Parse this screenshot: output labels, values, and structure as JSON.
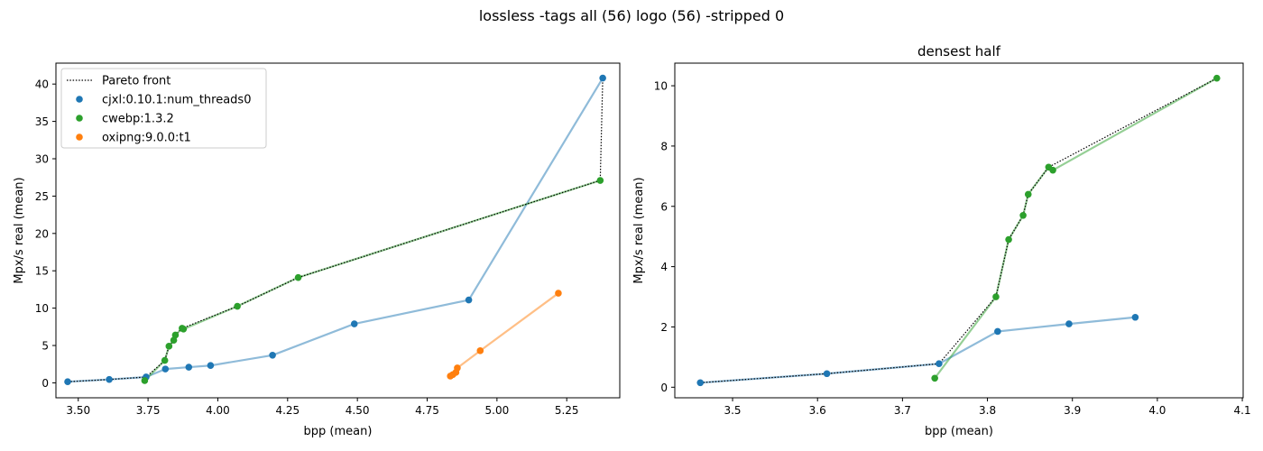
{
  "suptitle": "lossless -tags all (56) logo (56) -stripped 0",
  "colors": {
    "cjxl": "#1f77b4",
    "cwebp": "#2ca02c",
    "oxipng": "#ff7f0e",
    "pareto": "#000000",
    "axis": "#000000"
  },
  "chart_data": [
    {
      "type": "scatter",
      "title": "",
      "xlabel": "bpp (mean)",
      "ylabel": "Mpx/s real (mean)",
      "xlim": [
        3.42,
        5.44
      ],
      "ylim": [
        -2.0,
        42.8
      ],
      "xticks": [
        "3.50",
        "3.75",
        "4.00",
        "4.25",
        "4.50",
        "4.75",
        "5.00",
        "5.25"
      ],
      "xtick_values": [
        3.5,
        3.75,
        4.0,
        4.25,
        4.5,
        4.75,
        5.0,
        5.25
      ],
      "yticks": [
        "0",
        "5",
        "10",
        "15",
        "20",
        "25",
        "30",
        "35",
        "40"
      ],
      "ytick_values": [
        0,
        5,
        10,
        15,
        20,
        25,
        30,
        35,
        40
      ],
      "legend": {
        "position": "upper-left",
        "pareto_label": "Pareto front",
        "entries": [
          "cjxl:0.10.1:num_threads0",
          "cwebp:1.3.2",
          "oxipng:9.0.0:t1"
        ]
      },
      "series": [
        {
          "name": "cjxl:0.10.1:num_threads0",
          "color": "#1f77b4",
          "x": [
            3.462,
            3.611,
            3.743,
            3.812,
            3.896,
            3.974,
            4.196,
            4.489,
            4.899,
            5.379
          ],
          "y": [
            0.15,
            0.45,
            0.78,
            1.85,
            2.1,
            2.32,
            3.7,
            7.9,
            11.1,
            40.8
          ]
        },
        {
          "name": "cwebp:1.3.2",
          "color": "#2ca02c",
          "x": [
            3.738,
            3.81,
            3.825,
            3.842,
            3.848,
            3.872,
            3.877,
            4.07,
            4.288,
            5.37
          ],
          "y": [
            0.3,
            3.0,
            4.9,
            5.7,
            6.4,
            7.3,
            7.2,
            10.25,
            14.1,
            27.1
          ]
        },
        {
          "name": "oxipng:9.0.0:t1",
          "color": "#ff7f0e",
          "x": [
            4.833,
            4.842,
            4.853,
            4.858,
            4.94,
            5.22
          ],
          "y": [
            0.9,
            1.1,
            1.4,
            2.0,
            4.3,
            12.0
          ]
        }
      ],
      "pareto": {
        "x": [
          3.462,
          3.611,
          3.743,
          3.81,
          3.825,
          3.842,
          3.848,
          3.872,
          4.07,
          4.288,
          5.37,
          5.379
        ],
        "y": [
          0.15,
          0.45,
          0.78,
          3.0,
          4.9,
          5.7,
          6.4,
          7.3,
          10.25,
          14.1,
          27.1,
          40.8
        ]
      }
    },
    {
      "type": "scatter",
      "title": "densest half",
      "xlabel": "bpp (mean)",
      "ylabel": "Mpx/s real (mean)",
      "xlim": [
        3.432,
        4.101
      ],
      "ylim": [
        -0.35,
        10.75
      ],
      "xticks": [
        "3.5",
        "3.6",
        "3.7",
        "3.8",
        "3.9",
        "4.0",
        "4.1"
      ],
      "xtick_values": [
        3.5,
        3.6,
        3.7,
        3.8,
        3.9,
        4.0,
        4.1
      ],
      "yticks": [
        "0",
        "2",
        "4",
        "6",
        "8",
        "10"
      ],
      "ytick_values": [
        0,
        2,
        4,
        6,
        8,
        10
      ],
      "series": [
        {
          "name": "cjxl:0.10.1:num_threads0",
          "color": "#1f77b4",
          "x": [
            3.462,
            3.611,
            3.743,
            3.812,
            3.896,
            3.974
          ],
          "y": [
            0.15,
            0.45,
            0.78,
            1.85,
            2.1,
            2.32
          ]
        },
        {
          "name": "cwebp:1.3.2",
          "color": "#2ca02c",
          "x": [
            3.738,
            3.81,
            3.825,
            3.842,
            3.848,
            3.872,
            3.877,
            4.07
          ],
          "y": [
            0.3,
            3.0,
            4.9,
            5.7,
            6.4,
            7.3,
            7.2,
            10.25
          ]
        }
      ],
      "pareto": {
        "x": [
          3.462,
          3.611,
          3.743,
          3.81,
          3.825,
          3.842,
          3.848,
          3.872,
          4.07
        ],
        "y": [
          0.15,
          0.45,
          0.78,
          3.0,
          4.9,
          5.7,
          6.4,
          7.3,
          10.25
        ]
      }
    }
  ]
}
